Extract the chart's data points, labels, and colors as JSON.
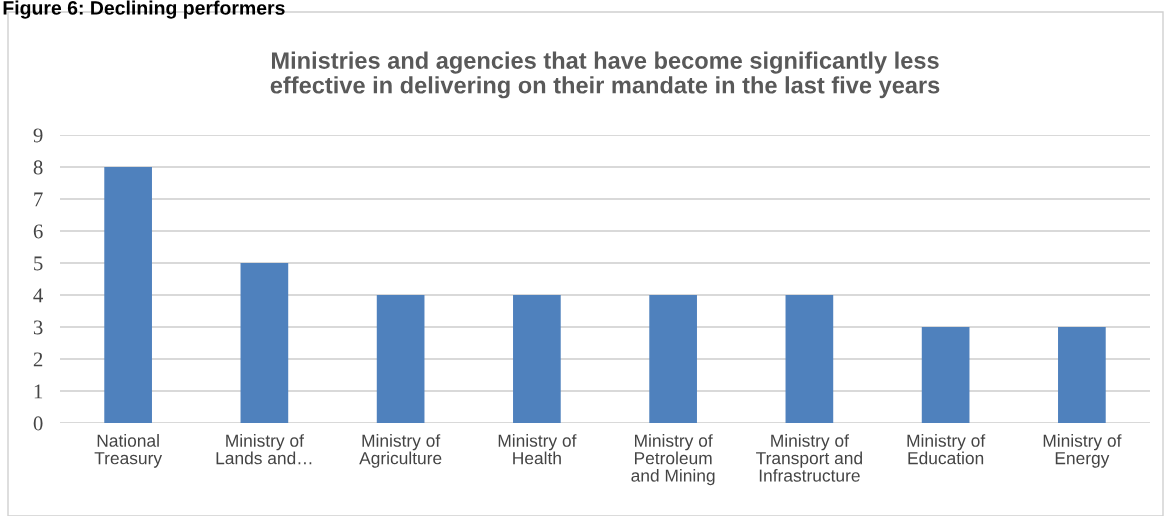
{
  "chart_data": {
    "type": "bar",
    "title": "Ministries and agencies that have become significantly less\neffective in delivering on their mandate in the last five years",
    "annotations": [
      "Figure 6: Declining performers"
    ],
    "categories": [
      "National\nTreasury",
      "Ministry of\nLands and…",
      "Ministry of\nAgriculture",
      "Ministry of\nHealth",
      "Ministry of\nPetroleum\nand Mining",
      "Ministry of\nTransport and\nInfrastructure",
      "Ministry of\nEducation",
      "Ministry of\nEnergy"
    ],
    "values": [
      8,
      5,
      4,
      4,
      4,
      4,
      3,
      3
    ],
    "color": "#4f81bd",
    "ylim": [
      0,
      9
    ],
    "yticks": [
      0,
      1,
      2,
      3,
      4,
      5,
      6,
      7,
      8,
      9
    ],
    "grid": "y"
  }
}
